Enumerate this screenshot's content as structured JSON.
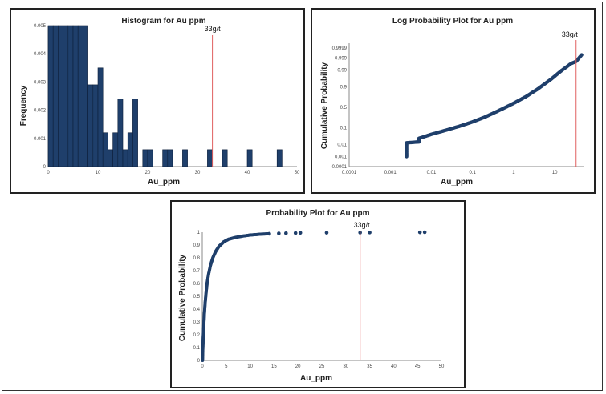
{
  "chart_data": [
    {
      "type": "bar",
      "title": "Histogram for Au ppm",
      "xlabel": "Au_ppm",
      "ylabel": "Frequency",
      "xlim": [
        0,
        50
      ],
      "ylim": [
        0,
        0.005
      ],
      "xticks": [
        "0",
        "10",
        "20",
        "30",
        "40",
        "50"
      ],
      "yticks": [
        "0",
        "0.001",
        "0.002",
        "0.003",
        "0.004",
        "0.005"
      ],
      "bin_width": 1,
      "bins": [
        {
          "x": 0,
          "value": 0.005
        },
        {
          "x": 1,
          "value": 0.005
        },
        {
          "x": 2,
          "value": 0.005
        },
        {
          "x": 3,
          "value": 0.005
        },
        {
          "x": 4,
          "value": 0.005
        },
        {
          "x": 5,
          "value": 0.005
        },
        {
          "x": 6,
          "value": 0.005
        },
        {
          "x": 7,
          "value": 0.005
        },
        {
          "x": 8,
          "value": 0.0029
        },
        {
          "x": 9,
          "value": 0.0029
        },
        {
          "x": 10,
          "value": 0.0035
        },
        {
          "x": 11,
          "value": 0.0012
        },
        {
          "x": 12,
          "value": 0.0006
        },
        {
          "x": 13,
          "value": 0.0012
        },
        {
          "x": 14,
          "value": 0.0024
        },
        {
          "x": 15,
          "value": 0.0006
        },
        {
          "x": 16,
          "value": 0.0012
        },
        {
          "x": 17,
          "value": 0.0024
        },
        {
          "x": 19,
          "value": 0.0006
        },
        {
          "x": 20,
          "value": 0.0006
        },
        {
          "x": 23,
          "value": 0.0006
        },
        {
          "x": 24,
          "value": 0.0006
        },
        {
          "x": 27,
          "value": 0.0006
        },
        {
          "x": 32,
          "value": 0.0006
        },
        {
          "x": 35,
          "value": 0.0006
        },
        {
          "x": 40,
          "value": 0.0006
        },
        {
          "x": 46,
          "value": 0.0006
        }
      ],
      "threshold": {
        "x": 33,
        "label": "33g/t"
      }
    },
    {
      "type": "scatter",
      "title": "Log Probability Plot for Au ppm",
      "xlabel": "Au_ppm",
      "ylabel": "Cumulative Probability",
      "xscale": "log",
      "xlim": [
        0.0001,
        50
      ],
      "xticks": [
        "0.0001",
        "0.001",
        "0.01",
        "0.1",
        "1",
        "10"
      ],
      "yticks": [
        "0.0001",
        "0.001",
        "0.01",
        "0.1",
        "0.5",
        "0.9",
        "0.99",
        "0.999",
        "0.9999"
      ],
      "points": [
        {
          "x": 0.0025,
          "y": 0.001
        },
        {
          "x": 0.0025,
          "y": 0.002
        },
        {
          "x": 0.0025,
          "y": 0.004
        },
        {
          "x": 0.0025,
          "y": 0.006
        },
        {
          "x": 0.0025,
          "y": 0.009
        },
        {
          "x": 0.0025,
          "y": 0.013
        },
        {
          "x": 0.005,
          "y": 0.015
        },
        {
          "x": 0.005,
          "y": 0.02
        },
        {
          "x": 0.005,
          "y": 0.026
        },
        {
          "x": 0.006,
          "y": 0.03
        },
        {
          "x": 0.01,
          "y": 0.045
        },
        {
          "x": 0.02,
          "y": 0.07
        },
        {
          "x": 0.05,
          "y": 0.12
        },
        {
          "x": 0.1,
          "y": 0.18
        },
        {
          "x": 0.2,
          "y": 0.27
        },
        {
          "x": 0.4,
          "y": 0.4
        },
        {
          "x": 0.7,
          "y": 0.52
        },
        {
          "x": 1,
          "y": 0.6
        },
        {
          "x": 2,
          "y": 0.75
        },
        {
          "x": 4,
          "y": 0.88
        },
        {
          "x": 8,
          "y": 0.96
        },
        {
          "x": 15,
          "y": 0.99
        },
        {
          "x": 25,
          "y": 0.997
        },
        {
          "x": 33,
          "y": 0.998
        },
        {
          "x": 45,
          "y": 0.9995
        }
      ],
      "threshold": {
        "x": 33,
        "label": "33g/t"
      }
    },
    {
      "type": "scatter",
      "title": "Probability Plot for Au ppm",
      "xlabel": "Au_ppm",
      "ylabel": "Cumulative Probability",
      "xlim": [
        0,
        50
      ],
      "ylim": [
        0,
        1
      ],
      "xticks": [
        "0",
        "5",
        "10",
        "15",
        "20",
        "25",
        "30",
        "35",
        "40",
        "45",
        "50"
      ],
      "yticks": [
        "0",
        "0.1",
        "0.2",
        "0.3",
        "0.4",
        "0.5",
        "0.6",
        "0.7",
        "0.8",
        "0.9",
        "1"
      ],
      "points": [
        {
          "x": 0.05,
          "y": 0.0
        },
        {
          "x": 0.08,
          "y": 0.05
        },
        {
          "x": 0.12,
          "y": 0.1
        },
        {
          "x": 0.18,
          "y": 0.16
        },
        {
          "x": 0.25,
          "y": 0.22
        },
        {
          "x": 0.35,
          "y": 0.3
        },
        {
          "x": 0.45,
          "y": 0.37
        },
        {
          "x": 0.6,
          "y": 0.45
        },
        {
          "x": 0.8,
          "y": 0.53
        },
        {
          "x": 1.0,
          "y": 0.6
        },
        {
          "x": 1.3,
          "y": 0.67
        },
        {
          "x": 1.7,
          "y": 0.74
        },
        {
          "x": 2.2,
          "y": 0.8
        },
        {
          "x": 2.8,
          "y": 0.85
        },
        {
          "x": 3.5,
          "y": 0.89
        },
        {
          "x": 4.5,
          "y": 0.925
        },
        {
          "x": 5.5,
          "y": 0.945
        },
        {
          "x": 7,
          "y": 0.96
        },
        {
          "x": 8.5,
          "y": 0.97
        },
        {
          "x": 10,
          "y": 0.978
        },
        {
          "x": 12,
          "y": 0.984
        },
        {
          "x": 14,
          "y": 0.988
        },
        {
          "x": 16,
          "y": 0.991
        },
        {
          "x": 17.5,
          "y": 0.992
        },
        {
          "x": 19.5,
          "y": 0.994
        },
        {
          "x": 20.5,
          "y": 0.995
        },
        {
          "x": 26,
          "y": 0.996
        },
        {
          "x": 33,
          "y": 0.997
        },
        {
          "x": 35,
          "y": 0.998
        },
        {
          "x": 45.5,
          "y": 0.999
        },
        {
          "x": 46.5,
          "y": 1.0
        }
      ],
      "threshold": {
        "x": 33,
        "label": "33g/t"
      }
    }
  ],
  "colors": {
    "marker": "#1f3f6b",
    "bar_fill": "#1f3f6b",
    "bar_edge": "#0d1f3a",
    "threshold": "#e06060",
    "axis": "#888888"
  }
}
